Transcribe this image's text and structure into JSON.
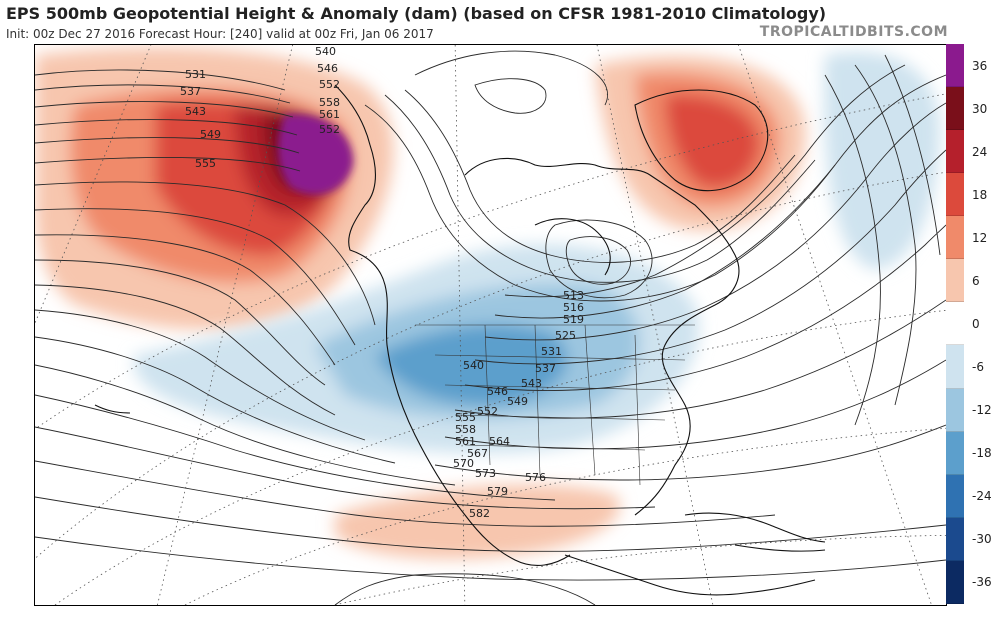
{
  "header": {
    "title": "EPS 500mb Geopotential Height & Anomaly (dam) (based on CFSR 1981-2010 Climatology)",
    "subtitle": "Init: 00z Dec 27 2016   Forecast Hour: [240]   valid at 00z Fri, Jan 06 2017",
    "brand": "TROPICALTIDBITS.COM"
  },
  "colorbar": {
    "levels": [
      {
        "label": "36",
        "color": "#8b1a8e"
      },
      {
        "label": "30",
        "color": "#7a0f1a"
      },
      {
        "label": "24",
        "color": "#b5202c"
      },
      {
        "label": "18",
        "color": "#dc4a3c"
      },
      {
        "label": "12",
        "color": "#f08a6a"
      },
      {
        "label": "6",
        "color": "#f7c6ae"
      },
      {
        "label": "0",
        "color": "#ffffff"
      },
      {
        "label": "-6",
        "color": "#cfe3ef"
      },
      {
        "label": "-12",
        "color": "#9cc6e0"
      },
      {
        "label": "-18",
        "color": "#5c9fcc"
      },
      {
        "label": "-24",
        "color": "#2f72b2"
      },
      {
        "label": "-30",
        "color": "#1b4a8e"
      },
      {
        "label": "-36",
        "color": "#0c2a62"
      }
    ]
  },
  "contour_labels": [
    {
      "text": "531",
      "group": "alaska"
    },
    {
      "text": "537",
      "group": "alaska"
    },
    {
      "text": "543",
      "group": "alaska"
    },
    {
      "text": "549",
      "group": "alaska"
    },
    {
      "text": "555",
      "group": "alaska"
    },
    {
      "text": "540",
      "group": "alaska-top"
    },
    {
      "text": "546",
      "group": "alaska-top"
    },
    {
      "text": "552",
      "group": "alaska-top"
    },
    {
      "text": "558",
      "group": "alaska-top"
    },
    {
      "text": "561",
      "group": "alaska-top"
    },
    {
      "text": "552",
      "group": "alaska-top"
    },
    {
      "text": "513",
      "group": "east"
    },
    {
      "text": "516",
      "group": "east"
    },
    {
      "text": "519",
      "group": "east"
    },
    {
      "text": "525",
      "group": "east"
    },
    {
      "text": "531",
      "group": "east"
    },
    {
      "text": "537",
      "group": "east"
    },
    {
      "text": "540",
      "group": "west"
    },
    {
      "text": "543",
      "group": "west"
    },
    {
      "text": "546",
      "group": "west"
    },
    {
      "text": "549",
      "group": "west"
    },
    {
      "text": "552",
      "group": "west"
    },
    {
      "text": "555",
      "group": "west"
    },
    {
      "text": "558",
      "group": "west"
    },
    {
      "text": "561",
      "group": "west"
    },
    {
      "text": "564",
      "group": "west"
    },
    {
      "text": "567",
      "group": "west"
    },
    {
      "text": "570",
      "group": "south"
    },
    {
      "text": "573",
      "group": "south"
    },
    {
      "text": "576",
      "group": "south"
    },
    {
      "text": "579",
      "group": "south"
    },
    {
      "text": "582",
      "group": "south"
    }
  ]
}
